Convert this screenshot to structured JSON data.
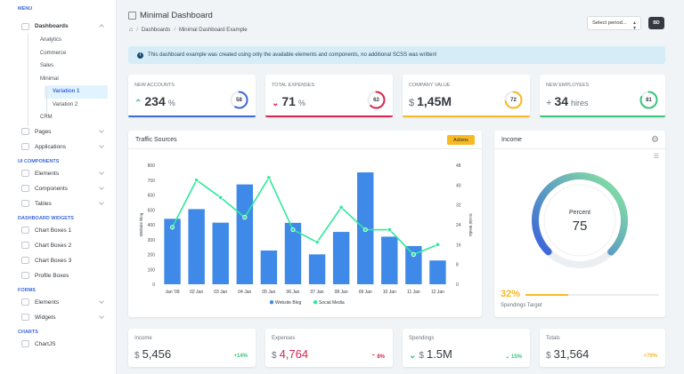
{
  "sidebar": {
    "menu_header": "MENU",
    "dashboards": "Dashboards",
    "dash_items": [
      "Analytics",
      "Commerce",
      "Sales"
    ],
    "minimal": "Minimal",
    "variation1": "Variation 1",
    "variation2": "Variation 2",
    "crm": "CRM",
    "pages": "Pages",
    "applications": "Applications",
    "ui_header": "UI COMPONENTS",
    "elements": "Elements",
    "components": "Components",
    "tables": "Tables",
    "widgets_header": "DASHBOARD WIDGETS",
    "chart_boxes": [
      "Chart Boxes 1",
      "Chart Boxes 2",
      "Chart Boxes 3"
    ],
    "profile_boxes": "Profile Boxes",
    "forms_header": "FORMS",
    "form_elements": "Elements",
    "form_widgets": "Widgets",
    "charts_header": "CHARTS",
    "chartjs": "ChartJS"
  },
  "header": {
    "title": "Minimal Dashboard",
    "crumb1": "Dashboards",
    "crumb2": "Minimal Dashboard Example",
    "period": "Select period...",
    "button": "BD"
  },
  "alert": "This dashboard example was created using only the available elements and components, no additional SCSS was written!",
  "stats": [
    {
      "label": "NEW ACCOUNTS",
      "value": "234",
      "unit": "%",
      "ring": "58",
      "color": "#3f6ad8"
    },
    {
      "label": "TOTAL EXPENSES",
      "value": "71",
      "unit": "%",
      "ring": "62",
      "color": "#d92550"
    },
    {
      "label": "COMPANY VALUE",
      "prefix": "$",
      "value": "1,45M",
      "ring": "72",
      "color": "#f7b924"
    },
    {
      "label": "NEW EMPLOYEES",
      "prefix": "+",
      "value": "34",
      "unit": "hires",
      "ring": "81",
      "color": "#3ac47d"
    }
  ],
  "traffic": {
    "title": "Traffic Sources",
    "actions": "Actions"
  },
  "income": {
    "title": "Income",
    "gauge_label": "Percent",
    "gauge_value": "75",
    "target_pct": "32%",
    "target_label": "Spendings Target"
  },
  "chart_data": {
    "type": "bar",
    "title": "Traffic Sources",
    "categories": [
      "Jan '09",
      "02 Jan",
      "03 Jan",
      "04 Jan",
      "05 Jan",
      "06 Jan",
      "07 Jan",
      "08 Jan",
      "09 Jan",
      "10 Jan",
      "11 Jan",
      "12 Jan"
    ],
    "series": [
      {
        "name": "Website Blog",
        "type": "bar",
        "axis": "left",
        "values": [
          440,
          505,
          414,
          671,
          227,
          413,
          201,
          352,
          752,
          320,
          257,
          160
        ]
      },
      {
        "name": "Social Media",
        "type": "line",
        "axis": "right",
        "values": [
          23,
          42,
          35,
          27,
          43,
          22,
          17,
          31,
          22,
          22,
          12,
          16
        ]
      }
    ],
    "ylabel_left": "Website Blog",
    "ylabel_right": "Social Media",
    "ylim_left": [
      0,
      800
    ],
    "ylim_right": [
      0,
      48
    ],
    "yticks_left": [
      "0",
      "100",
      "200",
      "300",
      "400",
      "500",
      "600",
      "700",
      "800"
    ],
    "yticks_right": [
      "0",
      "8",
      "16",
      "24",
      "32",
      "40",
      "48"
    ],
    "legend": "bottom"
  },
  "bottom": [
    {
      "label": "Income",
      "cur": "$",
      "value": "5,456",
      "pct": "+14%",
      "color": "#3ac47d"
    },
    {
      "label": "Expenses",
      "cur": "$",
      "value": "4,764",
      "pct": "8%",
      "color": "#d92550"
    },
    {
      "label": "Spendings",
      "cur": "$",
      "value": "1.5M",
      "pct": "15%",
      "color": "#3ac47d"
    },
    {
      "label": "Totals",
      "cur": "$",
      "value": "31,564",
      "pct": "+76%",
      "color": "#f7b924"
    }
  ]
}
